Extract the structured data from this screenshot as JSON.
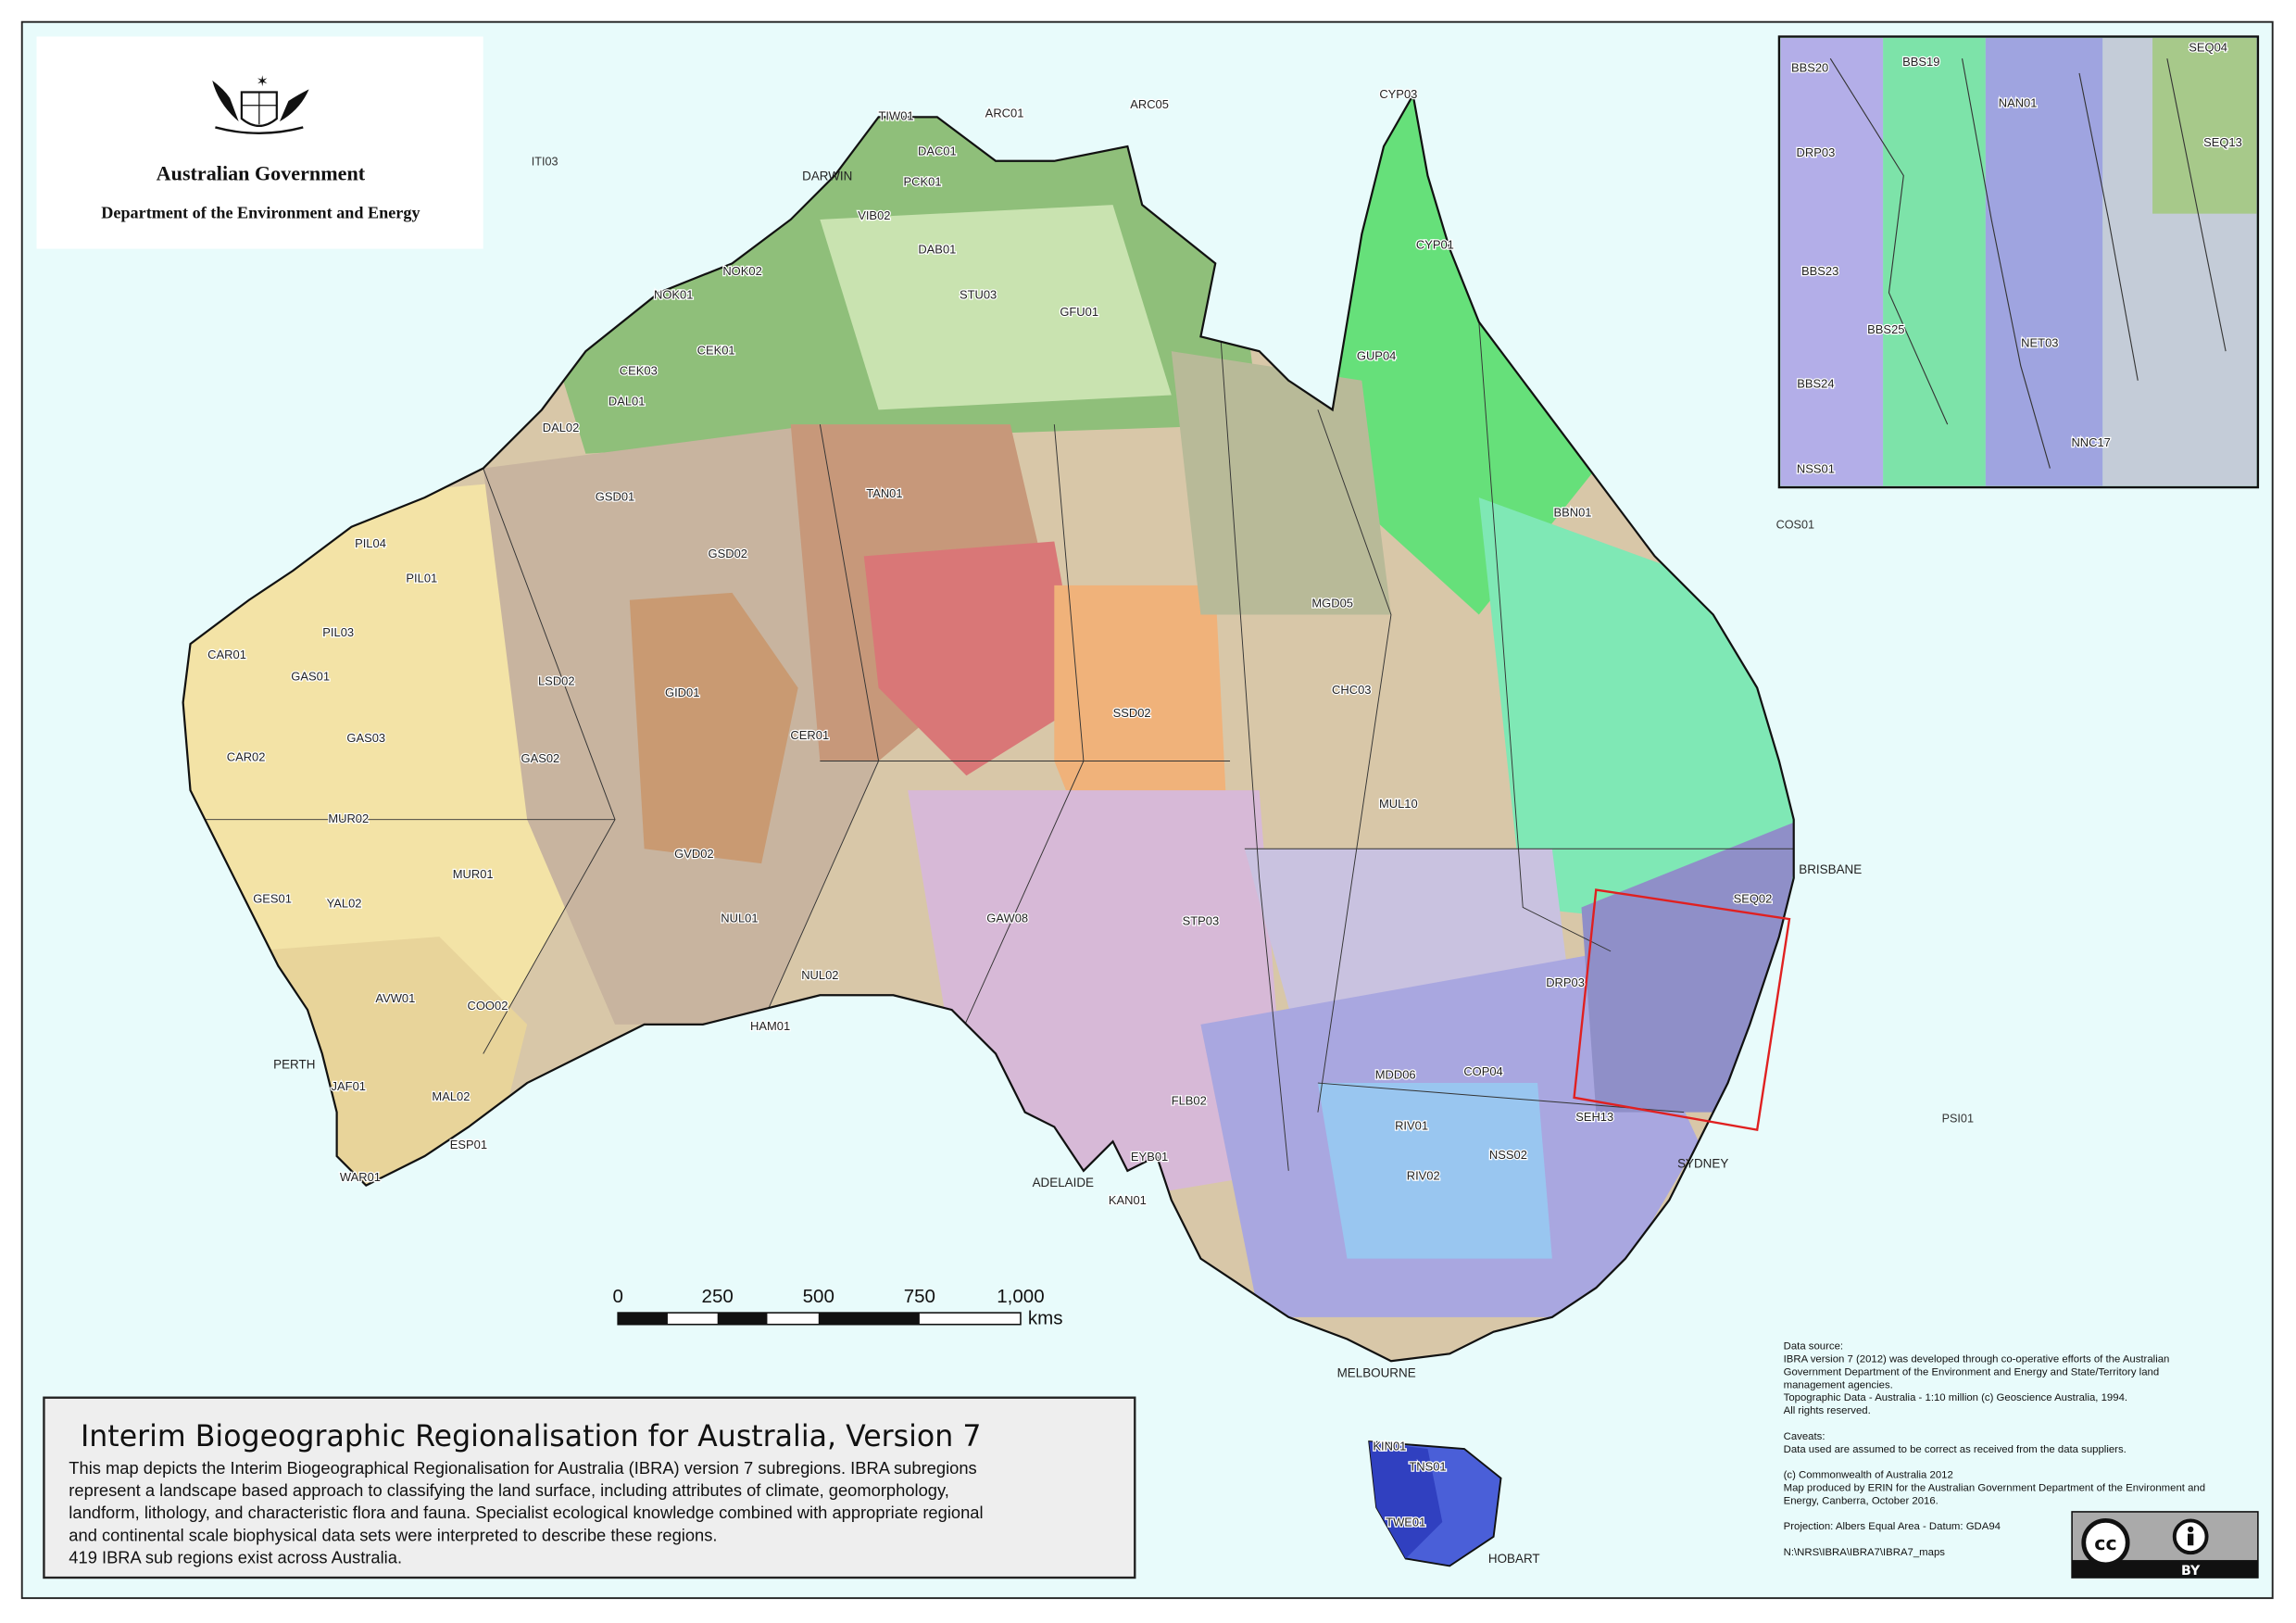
{
  "header": {
    "logo_org": "Australian Government",
    "department": "Department of the Environment and Energy"
  },
  "title_box": {
    "title": "Interim Biogeographic Regionalisation for Australia, Version 7",
    "description": [
      "This map depicts the Interim Biogeographical Regionalisation for Australia (IBRA) version 7 subregions.  IBRA subregions",
      "represent a landscape based approach to classifying the land surface, including attributes of climate, geomorphology,",
      "landform, lithology, and characteristic flora and fauna.  Specialist ecological knowledge combined with appropriate regional",
      "and continental scale biophysical data sets were interpreted to describe these regions.",
      "419 IBRA sub regions exist across Australia."
    ]
  },
  "scale_bar": {
    "ticks": [
      "0",
      "250",
      "500",
      "750",
      "1,000"
    ],
    "unit": "kms"
  },
  "cities": [
    "DARWIN",
    "PERTH",
    "ADELAIDE",
    "MELBOURNE",
    "SYDNEY",
    "BRISBANE",
    "HOBART"
  ],
  "offshore_labels": [
    "ITI03",
    "COS01",
    "PSI01"
  ],
  "region_labels": [
    "TIW01",
    "ARC01",
    "ARC05",
    "DAC01",
    "PCK01",
    "VIB02",
    "DAB01",
    "STU03",
    "GFU01",
    "NOK01",
    "NOK02",
    "CEK01",
    "CEK03",
    "DAL01",
    "DAL02",
    "GSD01",
    "TAN01",
    "GSD02",
    "PIL01",
    "PIL04",
    "PIL03",
    "CAR01",
    "GAS01",
    "GAS03",
    "CAR02",
    "LSD02",
    "GID01",
    "GAS02",
    "MUR02",
    "MUR01",
    "YAL02",
    "GES01",
    "AVW01",
    "COO02",
    "MAL02",
    "ESP01",
    "JAF01",
    "WAR01",
    "GVD02",
    "NUL01",
    "NUL02",
    "HAM01",
    "CER01",
    "SSD02",
    "MGD05",
    "CHC03",
    "BBN01",
    "CYP01",
    "CYP03",
    "GUP04",
    "SEQ02",
    "RIV01",
    "RIV02",
    "MDD06",
    "COP04",
    "NSS02",
    "SEH13",
    "KAN01",
    "FLB02",
    "EYB01",
    "GAW08",
    "STP03",
    "MUL10",
    "DRP03",
    "KIN01",
    "TNS01",
    "TWE01"
  ],
  "inset": {
    "labels": [
      "BBS20",
      "BBS19",
      "SEQ04",
      "NAN01",
      "DRP03",
      "BBS23",
      "BBS25",
      "BBS24",
      "NET03",
      "NNC17",
      "SEQ13",
      "NSS01"
    ]
  },
  "data_source": {
    "lines": [
      "Data source:",
      "IBRA version 7 (2012) was developed through co-operative efforts of the Australian",
      "Government Department of the Environment and Energy and State/Territory land",
      "management agencies.",
      "Topographic Data - Australia - 1:10 million (c) Geoscience Australia, 1994.",
      "All rights reserved.",
      "",
      "Caveats:",
      "Data used are assumed to be correct as received from the data suppliers.",
      "",
      "(c) Commonwealth of Australia 2012",
      "Map produced by ERIN for the Australian Government Department of the Environment and",
      "Energy, Canberra, October 2016.",
      "",
      "Projection: Albers Equal Area - Datum: GDA94",
      "",
      "N:\\NRS\\IBRA\\IBRA7\\IBRA7_maps"
    ]
  },
  "license": {
    "badge": "BY",
    "cc": "cc"
  },
  "colors": {
    "sea": "#e8fbfb",
    "north": "#8fbf7a",
    "west": "#f3e3a6",
    "central": "#c79f7e",
    "east_green": "#66e07a",
    "southeast": "#a9a7e0",
    "highlight_box": "#e02020"
  }
}
